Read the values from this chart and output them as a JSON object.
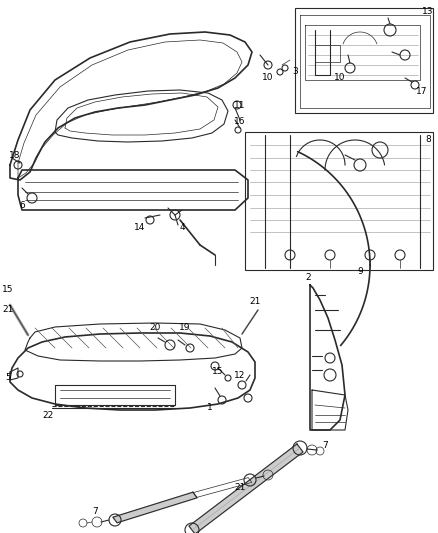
{
  "background_color": "#ffffff",
  "line_color": "#2a2a2a",
  "label_color": "#000000",
  "fig_width": 4.38,
  "fig_height": 5.33,
  "dpi": 100,
  "gray_strut": "#888888",
  "light_gray": "#bbbbbb"
}
